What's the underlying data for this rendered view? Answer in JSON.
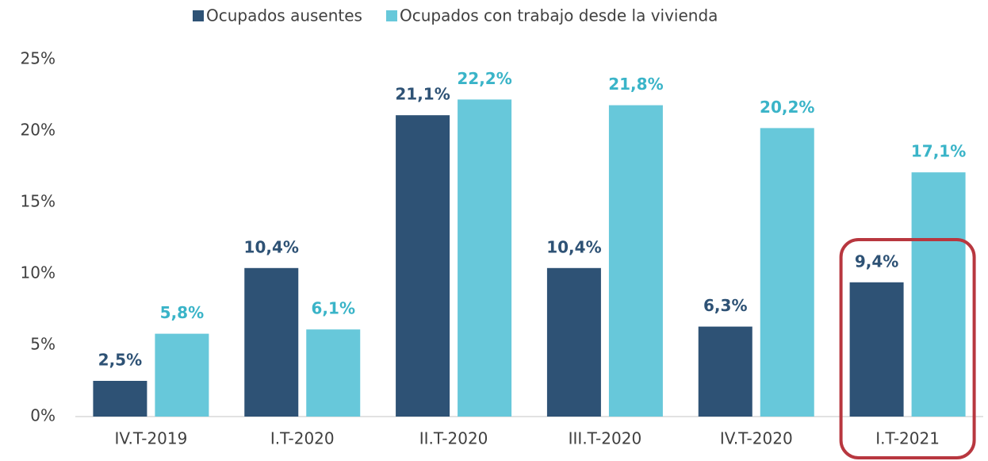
{
  "chart_data": {
    "type": "bar",
    "categories": [
      "IV.T-2019",
      "I.T-2020",
      "II.T-2020",
      "III.T-2020",
      "IV.T-2020",
      "I.T-2021"
    ],
    "series": [
      {
        "name": "Ocupados ausentes",
        "color": "#2e5275",
        "label_color": "#2e5275",
        "values": [
          2.5,
          10.4,
          21.1,
          10.4,
          6.3,
          9.4
        ],
        "value_labels": [
          "2,5%",
          "10,4%",
          "21,1%",
          "10,4%",
          "6,3%",
          "9,4%"
        ]
      },
      {
        "name": "Ocupados con trabajo desde la vivienda",
        "color": "#67c8da",
        "label_color": "#3ab4c8",
        "values": [
          5.8,
          6.1,
          22.2,
          21.8,
          20.2,
          17.1
        ],
        "value_labels": [
          "5,8%",
          "6,1%",
          "22,2%",
          "21,8%",
          "20,2%",
          "17,1%"
        ]
      }
    ],
    "ylim": [
      0,
      25
    ],
    "yticks": [
      {
        "value": 0,
        "label": "0%"
      },
      {
        "value": 5,
        "label": "5%"
      },
      {
        "value": 10,
        "label": "10%"
      },
      {
        "value": 15,
        "label": "15%"
      },
      {
        "value": 20,
        "label": "20%"
      },
      {
        "value": 25,
        "label": "25%"
      }
    ],
    "grid": false,
    "legend": "top"
  }
}
